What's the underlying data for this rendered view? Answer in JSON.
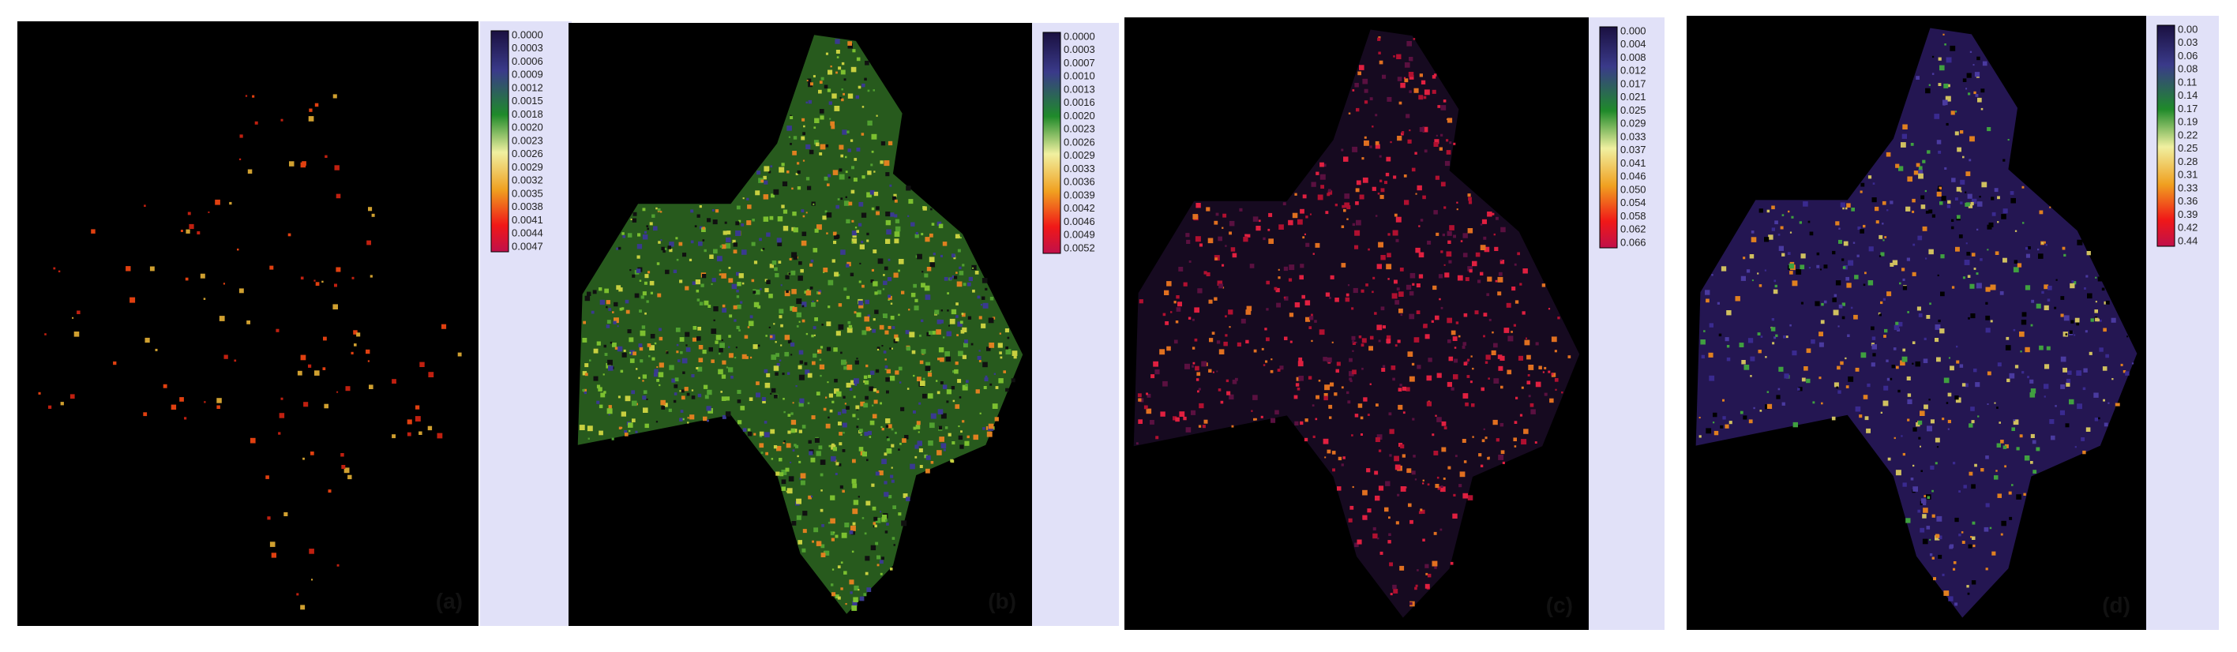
{
  "panels": [
    {
      "label": "(a)",
      "legend_ticks": [
        "0.0000",
        "0.0003",
        "0.0006",
        "0.0009",
        "0.0012",
        "0.0015",
        "0.0018",
        "0.0020",
        "0.0023",
        "0.0026",
        "0.0029",
        "0.0032",
        "0.0035",
        "0.0038",
        "0.0041",
        "0.0044",
        "0.0047"
      ]
    },
    {
      "label": "(b)",
      "legend_ticks": [
        "0.0000",
        "0.0003",
        "0.0007",
        "0.0010",
        "0.0013",
        "0.0016",
        "0.0020",
        "0.0023",
        "0.0026",
        "0.0029",
        "0.0033",
        "0.0036",
        "0.0039",
        "0.0042",
        "0.0046",
        "0.0049",
        "0.0052"
      ]
    },
    {
      "label": "(c)",
      "legend_ticks": [
        "0.000",
        "0.004",
        "0.008",
        "0.012",
        "0.017",
        "0.021",
        "0.025",
        "0.029",
        "0.033",
        "0.037",
        "0.041",
        "0.046",
        "0.050",
        "0.054",
        "0.058",
        "0.062",
        "0.066"
      ]
    },
    {
      "label": "(d)",
      "legend_ticks": [
        "0.00",
        "0.03",
        "0.06",
        "0.08",
        "0.11",
        "0.14",
        "0.17",
        "0.19",
        "0.22",
        "0.25",
        "0.28",
        "0.31",
        "0.33",
        "0.36",
        "0.39",
        "0.42",
        "0.44"
      ]
    }
  ]
}
